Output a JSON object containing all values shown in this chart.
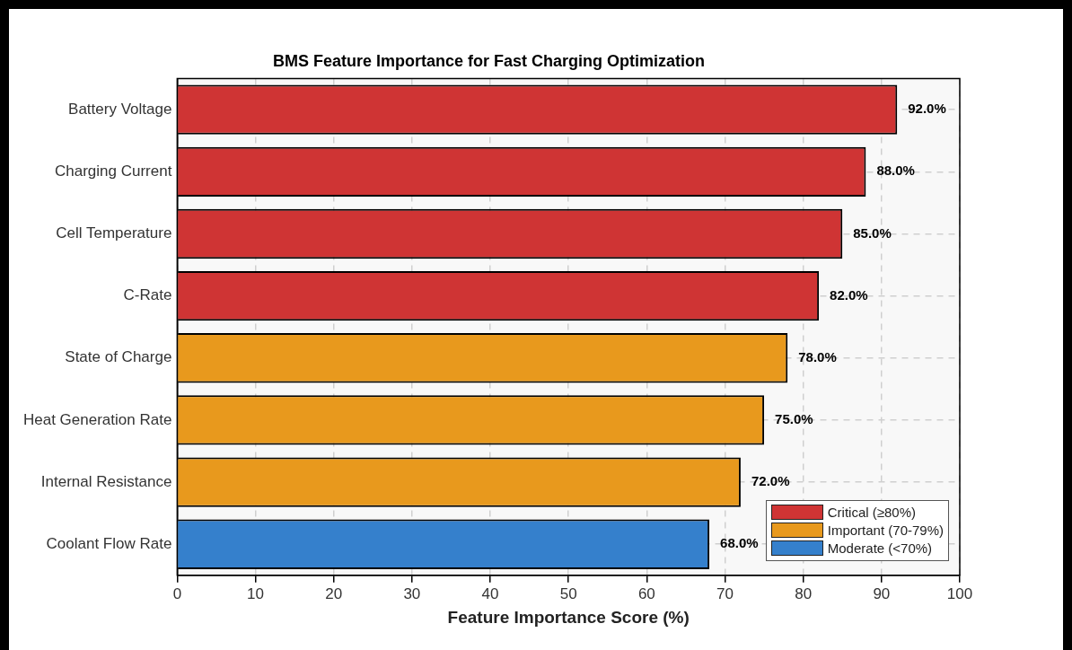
{
  "chart_data": {
    "type": "bar",
    "orientation": "horizontal",
    "title": "BMS Feature Importance for Fast Charging Optimization",
    "xlabel": "Feature Importance Score (%)",
    "categories": [
      "Battery Voltage",
      "Charging Current",
      "Cell Temperature",
      "C-Rate",
      "State of Charge",
      "Heat Generation Rate",
      "Internal Resistance",
      "Coolant Flow Rate"
    ],
    "series": [
      {
        "name": "Critical (≥80%)",
        "color": "#cf3434",
        "values": [
          92,
          88,
          85,
          82,
          null,
          null,
          null,
          null
        ],
        "value_labels": [
          "92.0%",
          "88.0%",
          "85.0%",
          "82.0%",
          null,
          null,
          null,
          null
        ]
      },
      {
        "name": "Important (70-79%)",
        "color": "#e8991d",
        "values": [
          null,
          null,
          null,
          null,
          78,
          75,
          72,
          null
        ],
        "value_labels": [
          null,
          null,
          null,
          null,
          "78.0%",
          "75.0%",
          "72.0%",
          null
        ]
      },
      {
        "name": "Moderate (<70%)",
        "color": "#3580cc",
        "values": [
          null,
          null,
          null,
          null,
          null,
          null,
          null,
          68
        ],
        "value_labels": [
          null,
          null,
          null,
          null,
          null,
          null,
          null,
          "68.0%"
        ]
      }
    ],
    "xlim": [
      0,
      100
    ],
    "xticks": [
      0,
      10,
      20,
      30,
      40,
      50,
      60,
      70,
      80,
      90,
      100
    ],
    "grid": true,
    "legend": "bottom right"
  }
}
